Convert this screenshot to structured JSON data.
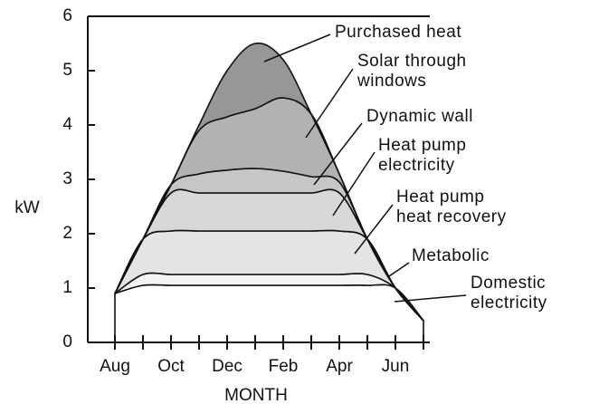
{
  "chart_data": {
    "type": "area",
    "stacked": true,
    "ylabel": "kW",
    "xlabel": "MONTH",
    "categories": [
      "Aug",
      null,
      "Oct",
      null,
      "Dec",
      null,
      "Feb",
      null,
      "Apr",
      null,
      "Jun",
      null
    ],
    "ylim": [
      0,
      6
    ],
    "yticks": [
      0,
      1,
      2,
      3,
      4,
      5,
      6
    ],
    "series": [
      {
        "name": "Domestic\nelectricity",
        "color": "#ffffff",
        "values": [
          0.9,
          1.05,
          1.05,
          1.05,
          1.05,
          1.05,
          1.05,
          1.05,
          1.05,
          1.05,
          1.0,
          0.4
        ]
      },
      {
        "name": "Metabolic",
        "color": "#f4f4f4",
        "values": [
          0,
          0.2,
          0.2,
          0.2,
          0.2,
          0.2,
          0.2,
          0.2,
          0.2,
          0.2,
          0,
          0
        ]
      },
      {
        "name": "Heat pump\nheat recovery",
        "color": "#e4e4e4",
        "values": [
          0,
          0.65,
          0.8,
          0.8,
          0.8,
          0.8,
          0.8,
          0.8,
          0.8,
          0.65,
          0,
          0
        ]
      },
      {
        "name": "Heat pump\nelectricity",
        "color": "#d8d8d8",
        "values": [
          0,
          0,
          0.7,
          0.7,
          0.7,
          0.7,
          0.7,
          0.7,
          0.7,
          0,
          0,
          0
        ]
      },
      {
        "name": "Dynamic wall",
        "color": "#c6c6c6",
        "values": [
          0,
          0,
          0.15,
          0.35,
          0.42,
          0.45,
          0.4,
          0.3,
          0.2,
          0,
          0,
          0
        ]
      },
      {
        "name": "Solar through\nwindows",
        "color": "#b2b2b2",
        "values": [
          0,
          0,
          0,
          0.8,
          0.98,
          1.1,
          1.35,
          1.15,
          0.15,
          0,
          0,
          0
        ]
      },
      {
        "name": "Purchased heat",
        "color": "#979797",
        "values": [
          0,
          0,
          0,
          0.1,
          0.85,
          1.2,
          0.7,
          0,
          0,
          0,
          0,
          0
        ]
      }
    ]
  }
}
